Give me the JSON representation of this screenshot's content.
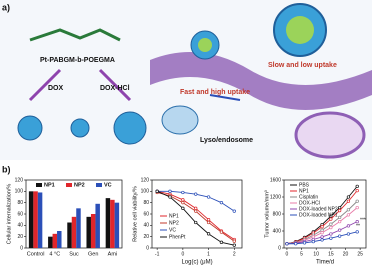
{
  "panel_labels": [
    "a)",
    "b)"
  ],
  "schematic": {
    "polymer": "Pt-PABGM-b-POEGMA",
    "drug": "DOX",
    "drug_salt": "DOX-HCl",
    "fast": "Fast and high uptake",
    "slow": "Slow and low uptake",
    "organelle": "Lyso/endosome"
  },
  "chart_data": [
    {
      "type": "bar",
      "y_label": "Cellular internalization/%",
      "categories": [
        "Control",
        "4 °C",
        "Suc",
        "Gen",
        "Ami"
      ],
      "series": [
        {
          "name": "NP1",
          "color": "#111111",
          "values": [
            100,
            20,
            45,
            55,
            88
          ]
        },
        {
          "name": "NP2",
          "color": "#e0262b",
          "values": [
            100,
            25,
            55,
            60,
            85
          ]
        },
        {
          "name": "VC",
          "color": "#2b4fb8",
          "values": [
            98,
            30,
            70,
            78,
            80
          ]
        }
      ],
      "ylim": [
        0,
        120
      ],
      "yticks": [
        0,
        20,
        40,
        60,
        80,
        100,
        120
      ]
    },
    {
      "type": "line",
      "y_label": "Relative cell viability/%",
      "x_label": "Log(c) (μM)",
      "x": [
        -1,
        -0.5,
        0,
        0.5,
        1,
        1.5,
        2
      ],
      "series": [
        {
          "name": "NP1",
          "color": "#e0262b",
          "values": [
            100,
            95,
            85,
            70,
            50,
            30,
            15
          ]
        },
        {
          "name": "NP2",
          "color": "#c0392b",
          "values": [
            98,
            92,
            80,
            65,
            45,
            28,
            12
          ]
        },
        {
          "name": "VC",
          "color": "#2b4fb8",
          "values": [
            100,
            100,
            98,
            95,
            90,
            80,
            65
          ]
        },
        {
          "name": "PhenPt",
          "color": "#111111",
          "values": [
            100,
            90,
            70,
            45,
            25,
            10,
            5
          ]
        }
      ],
      "xlim": [
        -1.2,
        2.3
      ],
      "xticks": [
        -1,
        0,
        1,
        2
      ],
      "ylim": [
        0,
        120
      ],
      "yticks": [
        0,
        20,
        40,
        60,
        80,
        100,
        120
      ]
    },
    {
      "type": "line",
      "y_label": "Tumor volume/mm³",
      "x_label": "Time/d",
      "x": [
        0,
        3,
        6,
        9,
        12,
        15,
        18,
        21,
        24
      ],
      "series": [
        {
          "name": "PBS",
          "color": "#111111",
          "values": [
            100,
            150,
            250,
            380,
            550,
            750,
            950,
            1200,
            1450
          ]
        },
        {
          "name": "NP1",
          "color": "#e0262b",
          "values": [
            100,
            140,
            230,
            350,
            500,
            680,
            880,
            1100,
            1350
          ]
        },
        {
          "name": "Cisplatin",
          "color": "#888888",
          "values": [
            100,
            130,
            200,
            300,
            420,
            560,
            720,
            900,
            1100
          ]
        },
        {
          "name": "DOX-HCl",
          "color": "#e87ca8",
          "values": [
            100,
            120,
            180,
            260,
            360,
            480,
            620,
            780,
            950
          ]
        },
        {
          "name": "DOX-loaded NP2",
          "color": "#8e44ad",
          "values": [
            100,
            110,
            150,
            200,
            260,
            330,
            420,
            520,
            620
          ]
        },
        {
          "name": "DOX-loaded NP1",
          "color": "#2b4fb8",
          "values": [
            100,
            100,
            120,
            150,
            190,
            230,
            280,
            330,
            380
          ]
        }
      ],
      "xlim": [
        -1,
        27
      ],
      "xticks": [
        0,
        5,
        10,
        15,
        20,
        25
      ],
      "ylim": [
        0,
        1600
      ],
      "yticks": [
        0,
        400,
        800,
        1200,
        1600
      ],
      "annotations": [
        "**",
        "***"
      ]
    }
  ]
}
